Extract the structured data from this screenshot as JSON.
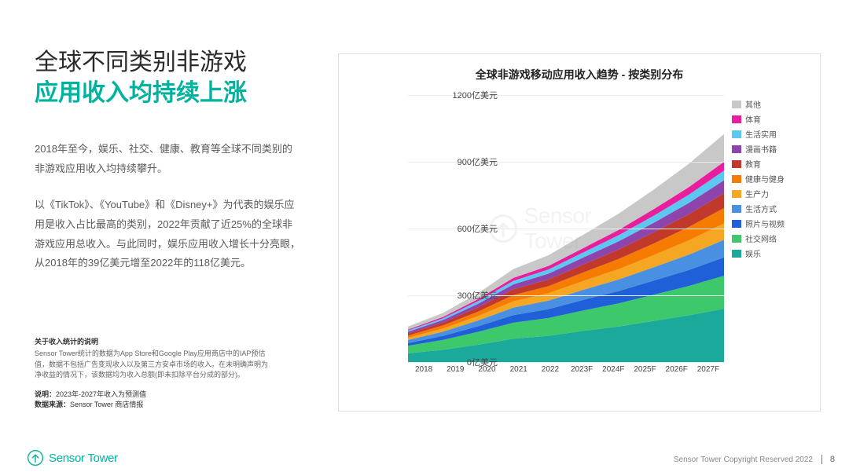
{
  "title": {
    "line1": "全球不同类别非游戏",
    "line2": "应用收入均持续上涨"
  },
  "title_color": "#00b39f",
  "paragraphs": [
    "2018年至今，娱乐、社交、健康、教育等全球不同类别的非游戏应用收入均持续攀升。",
    "以《TikTok》、《YouTube》和《Disney+》为代表的娱乐应用是收入占比最高的类别，2022年贡献了近25%的全球非游戏应用总收入。与此同时，娱乐应用收入增长十分亮眼，从2018年的39亿美元增至2022年的118亿美元。"
  ],
  "footnote": {
    "head1": "关于收入统计的说明",
    "body1": "Sensor Tower统计的数据为App Store和Google Play应用商店中的IAP预估值，数据不包括广告变现收入以及第三方安卓市场的收入。在未明确声明为净收益的情况下，该数据均为收入总额(即未扣除平台分成的部分)。",
    "line2a": "说明：",
    "line2b": "2023年-2027年收入为预测值",
    "line3a": "数据来源：",
    "line3b": "Sensor Tower 商店情报"
  },
  "chart": {
    "type": "stacked-area",
    "title": "全球非游戏移动应用收入趋势 - 按类别分布",
    "x_labels": [
      "2018",
      "2019",
      "2020",
      "2021",
      "2022",
      "2023F",
      "2024F",
      "2025F",
      "2026F",
      "2027F"
    ],
    "y_ticks": [
      0,
      300,
      600,
      900,
      1200
    ],
    "y_tick_labels": [
      "0亿美元",
      "300亿美元",
      "600亿美元",
      "900亿美元",
      "1200亿美元"
    ],
    "ylim": [
      0,
      1200
    ],
    "background_color": "#ffffff",
    "grid_color": "#ececec",
    "series": [
      {
        "name": "娱乐",
        "color": "#1aa99b",
        "values": [
          39,
          55,
          78,
          105,
          118,
          140,
          160,
          185,
          210,
          240
        ]
      },
      {
        "name": "社交网络",
        "color": "#3cc86b",
        "values": [
          34,
          45,
          58,
          72,
          80,
          92,
          104,
          118,
          132,
          148
        ]
      },
      {
        "name": "照片与视频",
        "color": "#1f5fd8",
        "values": [
          12,
          18,
          25,
          34,
          40,
          48,
          55,
          63,
          72,
          82
        ]
      },
      {
        "name": "生活方式",
        "color": "#4a90e2",
        "values": [
          14,
          19,
          26,
          34,
          38,
          45,
          52,
          60,
          69,
          79
        ]
      },
      {
        "name": "生产力",
        "color": "#f5a623",
        "values": [
          10,
          14,
          20,
          28,
          33,
          40,
          47,
          55,
          64,
          74
        ]
      },
      {
        "name": "健康与健身",
        "color": "#f57c00",
        "values": [
          10,
          14,
          20,
          28,
          32,
          38,
          45,
          52,
          60,
          69
        ]
      },
      {
        "name": "教育",
        "color": "#c0392b",
        "values": [
          9,
          13,
          19,
          26,
          30,
          36,
          43,
          50,
          58,
          67
        ]
      },
      {
        "name": "漫画书籍",
        "color": "#8e44ad",
        "values": [
          8,
          11,
          16,
          22,
          26,
          31,
          37,
          43,
          50,
          58
        ]
      },
      {
        "name": "生活实用",
        "color": "#5cc8f2",
        "values": [
          6,
          8,
          12,
          16,
          19,
          23,
          27,
          32,
          37,
          43
        ]
      },
      {
        "name": "体育",
        "color": "#e91e9c",
        "values": [
          4,
          6,
          9,
          13,
          16,
          20,
          24,
          29,
          34,
          40
        ]
      },
      {
        "name": "其他",
        "color": "#c8c8c8",
        "values": [
          14,
          18,
          27,
          40,
          48,
          60,
          73,
          88,
          105,
          125
        ]
      }
    ],
    "watermark": "Sensor Tower"
  },
  "footer": {
    "brand": "Sensor Tower",
    "brand_color": "#00b39f",
    "copyright": "Sensor Tower Copyright Reserved 2022",
    "page_number": "8"
  }
}
